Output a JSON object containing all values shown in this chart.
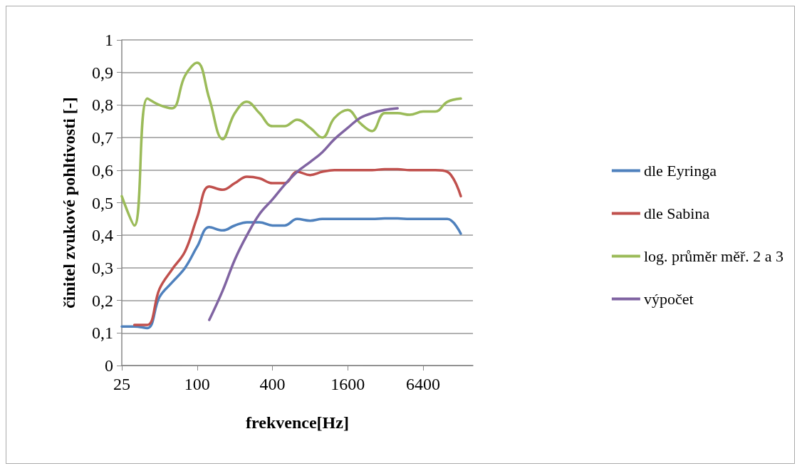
{
  "chart_data": {
    "type": "line",
    "xlabel": "frekvence[Hz]",
    "ylabel": "činitel zvukové pohltivosti [-]",
    "log": "x",
    "grid": "y",
    "legend": "right",
    "marker": "none",
    "line_style": "solid",
    "xlim": [
      25,
      16000
    ],
    "xticks": [
      25,
      100,
      400,
      1600,
      6400
    ],
    "ylim": [
      0,
      1
    ],
    "yticks": [
      0,
      {
        "value": 0.1,
        "label": "0,1"
      },
      {
        "value": 0.2,
        "label": "0,2"
      },
      {
        "value": 0.3,
        "label": "0,3"
      },
      {
        "value": 0.4,
        "label": "0,4"
      },
      {
        "value": 0.5,
        "label": "0,5"
      },
      {
        "value": 0.6,
        "label": "0,6"
      },
      {
        "value": 0.7,
        "label": "0,7"
      },
      {
        "value": 0.8,
        "label": "0,8"
      },
      {
        "value": 0.9,
        "label": "0,9"
      },
      1
    ],
    "series": [
      {
        "name": "dle Eyringa",
        "color": "#4f81bd",
        "x": [
          25,
          31.5,
          40,
          50,
          63,
          80,
          100,
          125,
          160,
          200,
          250,
          315,
          400,
          500,
          630,
          800,
          1000,
          1250,
          1600,
          2000,
          2500,
          3150,
          4000,
          5000,
          6400,
          8000,
          10000,
          12800
        ],
        "values": [
          0.12,
          0.12,
          0.115,
          0.21,
          0.255,
          0.3,
          0.365,
          0.425,
          0.415,
          0.43,
          0.44,
          0.44,
          0.43,
          0.43,
          0.45,
          0.445,
          0.45,
          0.45,
          0.45,
          0.45,
          0.45,
          0.452,
          0.452,
          0.45,
          0.45,
          0.45,
          0.45,
          0.405
        ]
      },
      {
        "name": "dle Sabina",
        "color": "#c0504d",
        "x": [
          31.5,
          40,
          50,
          63,
          80,
          100,
          125,
          160,
          200,
          250,
          315,
          400,
          500,
          630,
          800,
          1000,
          1250,
          1600,
          2000,
          2500,
          3150,
          4000,
          5000,
          6400,
          8000,
          10000,
          12800
        ],
        "values": [
          0.125,
          0.125,
          0.235,
          0.295,
          0.35,
          0.455,
          0.55,
          0.54,
          0.56,
          0.58,
          0.575,
          0.56,
          0.56,
          0.595,
          0.585,
          0.595,
          0.6,
          0.6,
          0.6,
          0.6,
          0.603,
          0.603,
          0.6,
          0.6,
          0.6,
          0.595,
          0.52
        ]
      },
      {
        "name": "log. průměr měř. 2 a 3",
        "color": "#9bbb59",
        "x": [
          25,
          31.5,
          40,
          50,
          63,
          80,
          100,
          125,
          160,
          200,
          250,
          315,
          400,
          500,
          630,
          800,
          1000,
          1250,
          1600,
          2000,
          2500,
          3150,
          4000,
          5000,
          6400,
          8000,
          10000,
          12800
        ],
        "values": [
          0.52,
          0.43,
          0.82,
          0.8,
          0.79,
          0.89,
          0.93,
          0.82,
          0.695,
          0.775,
          0.81,
          0.775,
          0.735,
          0.735,
          0.755,
          0.73,
          0.7,
          0.76,
          0.785,
          0.745,
          0.72,
          0.775,
          0.775,
          0.77,
          0.78,
          0.78,
          0.81,
          0.82
        ]
      },
      {
        "name": "výpočet",
        "color": "#8064a2",
        "x": [
          125,
          160,
          200,
          250,
          315,
          400,
          500,
          630,
          800,
          1000,
          1250,
          1600,
          2000,
          2500,
          3150,
          4000
        ],
        "values": [
          0.14,
          0.23,
          0.325,
          0.4,
          0.465,
          0.51,
          0.555,
          0.595,
          0.625,
          0.655,
          0.695,
          0.73,
          0.76,
          0.775,
          0.785,
          0.79
        ]
      }
    ]
  }
}
